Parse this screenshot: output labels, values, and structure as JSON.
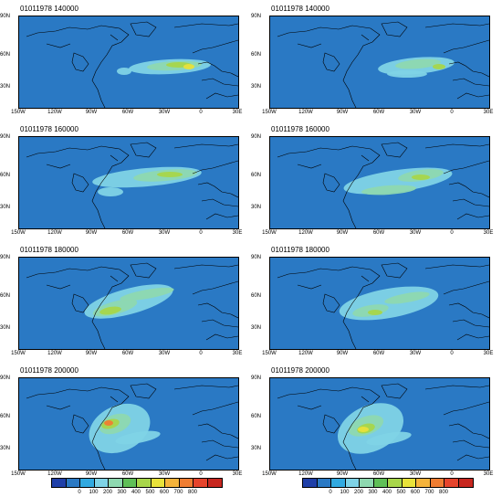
{
  "panels": [
    {
      "id": "r1c1",
      "title": "01011978 140000"
    },
    {
      "id": "r1c2",
      "title": "01011978 140000"
    },
    {
      "id": "r2c1",
      "title": "01011978 160000"
    },
    {
      "id": "r2c2",
      "title": "01011978 160000"
    },
    {
      "id": "r3c1",
      "title": "01011978 180000"
    },
    {
      "id": "r3c2",
      "title": "01011978 180000"
    },
    {
      "id": "r4c1",
      "title": "01011978 200000"
    },
    {
      "id": "r4c2",
      "title": "01011978 200000"
    }
  ],
  "lat_labels": [
    "90N",
    "60N",
    "30N"
  ],
  "lon_labels": [
    "150W",
    "120W",
    "90W",
    "60W",
    "30W",
    "0",
    "30E"
  ],
  "colorbar": {
    "labels": [
      "0",
      "100",
      "200",
      "300",
      "400",
      "500",
      "600",
      "700",
      "800"
    ],
    "colors": [
      "#1f3fa8",
      "#2a79c4",
      "#31a9e0",
      "#7fd3e6",
      "#8ed8b0",
      "#5fbf57",
      "#a8d64a",
      "#e8e23a",
      "#f5b33b",
      "#ef7d32",
      "#e6442c",
      "#c7271f"
    ]
  },
  "colors": {
    "background": "#2a79c4",
    "level1": "#7fd3e6",
    "level2": "#8ed8b0",
    "level3": "#a8d64a",
    "level4": "#e8e23a",
    "level5": "#ef7d32",
    "level6": "#e6442c"
  }
}
